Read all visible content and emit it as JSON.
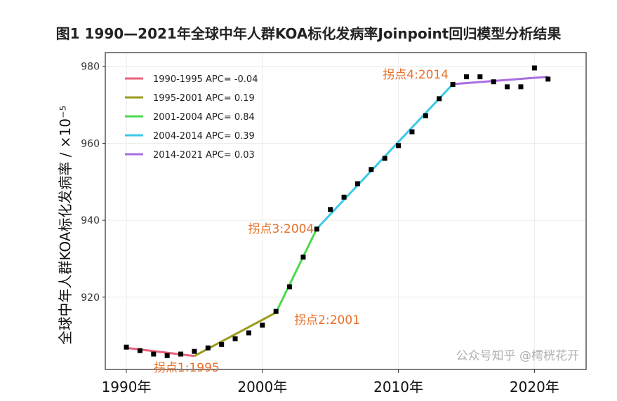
{
  "title": "图1 1990—2021年全球中年人群KOA标化发病率Joinpoint回归模型分析结果",
  "watermark": "公众号知乎 @樗桄花开",
  "chart_data": {
    "type": "line",
    "title": "图1 1990—2021年全球中年人群KOA标化发病率Joinpoint回归模型分析结果",
    "xlabel": "",
    "ylabel": "全球中年人群KOA标化发病率 / ×10⁻⁵",
    "xlim": [
      1988.45,
      2023.8
    ],
    "ylim": [
      901.2,
      983.6
    ],
    "xticks": [
      1990,
      2000,
      2010,
      2020
    ],
    "xtick_labels": [
      "1990年",
      "2000年",
      "2010年",
      "2020年"
    ],
    "yticks": [
      920,
      940,
      960,
      980
    ],
    "ytick_labels": [
      "920",
      "940",
      "960",
      "980"
    ],
    "grid": true,
    "legend_position": "top-left",
    "observed": {
      "x": [
        1990,
        1991,
        1992,
        1993,
        1994,
        1995,
        1996,
        1997,
        1998,
        1999,
        2000,
        2001,
        2002,
        2003,
        2004,
        2005,
        2006,
        2007,
        2008,
        2009,
        2010,
        2011,
        2012,
        2013,
        2014,
        2015,
        2016,
        2017,
        2018,
        2019,
        2020,
        2021
      ],
      "y": [
        907.0,
        906.1,
        905.2,
        904.8,
        905.2,
        905.9,
        906.8,
        907.7,
        909.2,
        910.7,
        912.7,
        916.3,
        922.7,
        930.4,
        937.7,
        942.8,
        946.0,
        949.5,
        953.2,
        956.1,
        959.4,
        963.0,
        967.2,
        971.6,
        975.3,
        977.3,
        977.3,
        976.0,
        974.7,
        974.7,
        979.6,
        976.7
      ]
    },
    "series": [
      {
        "name": "1990-1995 APC= -0.04",
        "color": "#e8607a",
        "x": [
          1990,
          1995
        ],
        "y": [
          906.8,
          904.7
        ]
      },
      {
        "name": "1995-2001 APC= 0.19",
        "color": "#9a9a1e",
        "x": [
          1995,
          2001
        ],
        "y": [
          904.7,
          916.0
        ]
      },
      {
        "name": "2001-2004 APC= 0.84",
        "color": "#4cd94c",
        "x": [
          2001,
          2004
        ],
        "y": [
          916.0,
          937.8
        ]
      },
      {
        "name": "2004-2014 APC= 0.39",
        "color": "#3cc8e8",
        "x": [
          2004,
          2014
        ],
        "y": [
          937.8,
          975.4
        ]
      },
      {
        "name": "2014-2021 APC= 0.03",
        "color": "#a86ee0",
        "x": [
          2014,
          2021
        ],
        "y": [
          975.4,
          977.3
        ]
      }
    ],
    "annotations": [
      {
        "text": "拐点1:1995",
        "x": 1995,
        "y": 904.7,
        "anchor": "below-left"
      },
      {
        "text": "拐点2:2001",
        "x": 2001,
        "y": 916.0,
        "anchor": "right"
      },
      {
        "text": "拐点3:2004",
        "x": 2004,
        "y": 937.8,
        "anchor": "left"
      },
      {
        "text": "拐点4:2014",
        "x": 2014,
        "y": 975.4,
        "anchor": "above-left"
      }
    ],
    "annotation_color": "#e8702a"
  }
}
